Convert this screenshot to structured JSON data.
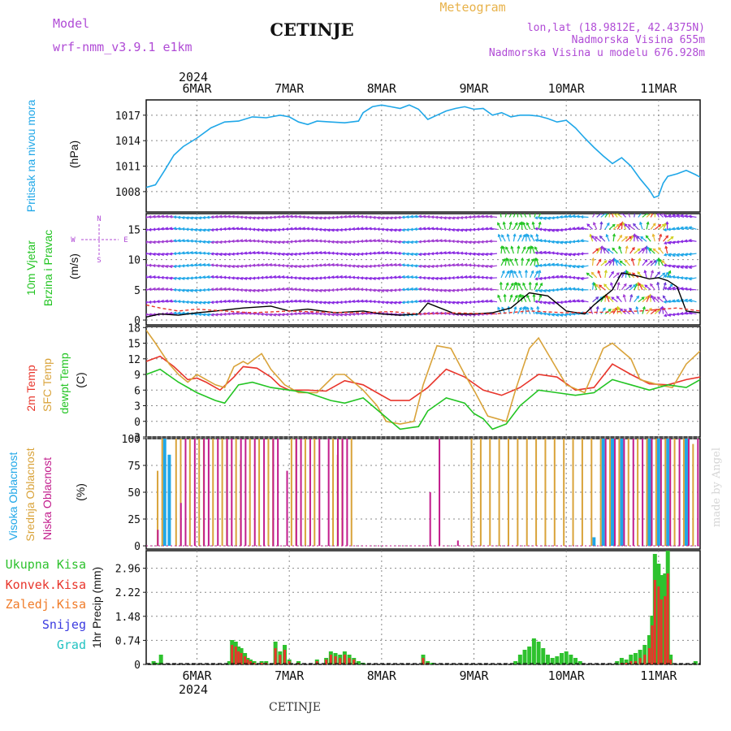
{
  "header": {
    "model_label": "Model",
    "model_name": "wrf-nmm_v3.9.1  e1km",
    "station": "CETINJE",
    "meteogram_label": "Meteogram",
    "lonlat": "lon,lat (18.9812E, 42.4375N)",
    "altitude": "Nadmorska Visina 655m",
    "model_altitude": "Nadmorska Visina u modelu 676.928m"
  },
  "footer": {
    "station": "CETINJE",
    "credit": "made by Angel"
  },
  "colors": {
    "pressure": "#1fa7e8",
    "wind_black": "#000000",
    "wind_red": "#e8352b",
    "temp2m": "#e8352b",
    "sfc": "#d9a33a",
    "dewpt": "#22c422",
    "high_cloud": "#1fa7e8",
    "mid_cloud": "#d9a33a",
    "low_cloud": "#c21c8c",
    "total_precip": "#2ec22e",
    "conv_precip": "#e8352b",
    "frz_precip": "#f07c2a",
    "snow": "#3a3ae0",
    "hail": "#22c2c2",
    "purple_label": "#b04bd6"
  },
  "time_axis": {
    "top_year": "2024",
    "bottom_year": "2024",
    "day_labels": [
      "6MAR",
      "7MAR",
      "8MAR",
      "9MAR",
      "10MAR",
      "11MAR"
    ],
    "day_positions": [
      1,
      2,
      3,
      4,
      5,
      6
    ],
    "range": [
      0.45,
      6.45
    ]
  },
  "chart_data": [
    {
      "type": "line",
      "panel": "pressure",
      "ylabel_title": "Pritisak na nivou mora",
      "ylabel_unit": "(hPa)",
      "yticks": [
        1008,
        1011,
        1014,
        1017
      ],
      "ylim": [
        1005.6,
        1018.8
      ],
      "grid": true,
      "series": [
        {
          "x": [
            0.45,
            0.55,
            0.65,
            0.75,
            0.85,
            1.0,
            1.15,
            1.3,
            1.45,
            1.6,
            1.75,
            1.9,
            2.0,
            2.1,
            2.2,
            2.3,
            2.45,
            2.6,
            2.75,
            2.8,
            2.9,
            3.0,
            3.1,
            3.2,
            3.3,
            3.4,
            3.5,
            3.6,
            3.7,
            3.8,
            3.9,
            4.0,
            4.1,
            4.2,
            4.3,
            4.4,
            4.5,
            4.6,
            4.7,
            4.8,
            4.9,
            5.0,
            5.1,
            5.2,
            5.3,
            5.4,
            5.5,
            5.6,
            5.7,
            5.8,
            5.9,
            5.95,
            6.0,
            6.05,
            6.1,
            6.2,
            6.3,
            6.4,
            6.45
          ],
          "y": [
            1008.5,
            1008.8,
            1010.5,
            1012.3,
            1013.3,
            1014.3,
            1015.5,
            1016.2,
            1016.3,
            1016.8,
            1016.7,
            1017.0,
            1016.8,
            1016.2,
            1015.9,
            1016.3,
            1016.2,
            1016.1,
            1016.3,
            1017.3,
            1018.0,
            1018.2,
            1018.0,
            1017.8,
            1018.2,
            1017.7,
            1016.5,
            1017.0,
            1017.5,
            1017.8,
            1018.0,
            1017.7,
            1017.8,
            1017.0,
            1017.3,
            1016.8,
            1017.0,
            1017.0,
            1016.9,
            1016.6,
            1016.2,
            1016.4,
            1015.5,
            1014.3,
            1013.2,
            1012.2,
            1011.3,
            1012.0,
            1011.0,
            1009.5,
            1008.2,
            1007.3,
            1007.5,
            1009.0,
            1009.8,
            1010.1,
            1010.5,
            1010.0,
            1009.7
          ]
        }
      ]
    },
    {
      "type": "line",
      "panel": "wind",
      "ylabel_title": "10m Vjetar",
      "ylabel_title2": "Brzina i Pravac",
      "ylabel_unit": "(m/s)",
      "compass": {
        "n": "N",
        "s": "S",
        "w": "W",
        "e": "E"
      },
      "yticks": [
        0,
        5,
        10,
        15
      ],
      "ylim": [
        -0.8,
        17.6
      ],
      "grid": true,
      "series": [
        {
          "name": "speed",
          "x": [
            0.45,
            0.6,
            0.8,
            1.0,
            1.2,
            1.5,
            1.8,
            2.0,
            2.2,
            2.5,
            2.8,
            3.0,
            3.2,
            3.4,
            3.5,
            3.6,
            3.8,
            4.0,
            4.2,
            4.4,
            4.6,
            4.8,
            5.0,
            5.2,
            5.3,
            5.5,
            5.6,
            5.8,
            5.9,
            6.0,
            6.1,
            6.2,
            6.3,
            6.45
          ],
          "y": [
            0.5,
            1.0,
            0.8,
            1.2,
            1.5,
            2.0,
            2.3,
            1.5,
            1.8,
            1.2,
            1.5,
            1.0,
            0.8,
            1.0,
            2.8,
            2.2,
            1.0,
            1.0,
            1.2,
            2.0,
            4.5,
            4.0,
            1.5,
            1.0,
            2.5,
            5.0,
            7.8,
            7.2,
            6.8,
            7.0,
            6.5,
            5.5,
            1.5,
            1.2
          ]
        },
        {
          "name": "gust",
          "x": [
            0.45,
            0.6,
            0.8,
            1.0,
            1.3,
            1.6,
            2.0,
            2.4,
            2.8,
            3.1,
            3.4,
            3.8,
            4.2,
            4.6,
            5.0,
            5.4,
            5.8,
            6.2,
            6.45
          ],
          "y": [
            2.5,
            2.0,
            1.5,
            1.8,
            1.5,
            1.2,
            1.5,
            1.3,
            1.2,
            1.4,
            1.0,
            1.2,
            1.0,
            1.5,
            1.2,
            1.3,
            1.5,
            2.0,
            1.5
          ]
        }
      ]
    },
    {
      "type": "line",
      "panel": "temperature",
      "ylabel_t2m": "2m Temp",
      "ylabel_sfc": "SFC Temp",
      "ylabel_dew": "dewpt Temp",
      "ylabel_unit": "(C)",
      "yticks": [
        -3,
        0,
        3,
        6,
        9,
        12,
        15,
        18
      ],
      "ylim": [
        -3,
        18.2
      ],
      "grid": true,
      "series": [
        {
          "name": "2m Temp",
          "x": [
            0.45,
            0.6,
            0.75,
            0.9,
            1.0,
            1.1,
            1.25,
            1.4,
            1.5,
            1.65,
            1.8,
            1.9,
            2.0,
            2.2,
            2.4,
            2.6,
            2.8,
            2.95,
            3.1,
            3.3,
            3.5,
            3.7,
            3.9,
            4.1,
            4.3,
            4.5,
            4.7,
            4.9,
            5.1,
            5.3,
            5.5,
            5.7,
            5.9,
            6.1,
            6.3,
            6.45
          ],
          "y": [
            11.5,
            12.5,
            10.5,
            8.0,
            8.3,
            7.5,
            6.0,
            8.5,
            10.5,
            10.2,
            8.5,
            6.8,
            6.0,
            6.0,
            5.8,
            7.8,
            7.0,
            5.5,
            4.0,
            4.0,
            6.5,
            10.0,
            8.5,
            6.0,
            5.0,
            6.5,
            9.0,
            8.5,
            6.0,
            6.5,
            11.0,
            9.0,
            7.2,
            7.0,
            8.0,
            8.5
          ]
        },
        {
          "name": "SFC Temp",
          "x": [
            0.45,
            0.55,
            0.7,
            0.8,
            0.9,
            1.0,
            1.1,
            1.2,
            1.3,
            1.4,
            1.5,
            1.55,
            1.7,
            1.8,
            1.95,
            2.1,
            2.3,
            2.5,
            2.6,
            2.8,
            2.95,
            3.05,
            3.2,
            3.35,
            3.45,
            3.6,
            3.75,
            3.9,
            4.0,
            4.15,
            4.35,
            4.45,
            4.6,
            4.7,
            4.8,
            5.0,
            5.2,
            5.4,
            5.5,
            5.7,
            5.8,
            6.0,
            6.15,
            6.3,
            6.45
          ],
          "y": [
            17.5,
            15.0,
            11.0,
            9.0,
            7.5,
            9.0,
            8.0,
            7.0,
            6.5,
            10.5,
            11.5,
            11.0,
            13.0,
            10.0,
            7.0,
            5.5,
            5.5,
            9.0,
            9.0,
            6.0,
            3.0,
            0.0,
            -0.5,
            0.0,
            7.0,
            14.5,
            14.0,
            9.0,
            6.0,
            1.0,
            0.0,
            6.0,
            14.0,
            16.0,
            13.0,
            7.0,
            5.5,
            14.0,
            15.0,
            12.0,
            8.0,
            7.0,
            6.5,
            11.0,
            13.5
          ]
        },
        {
          "name": "dewpt Temp",
          "x": [
            0.45,
            0.6,
            0.8,
            1.0,
            1.2,
            1.3,
            1.45,
            1.6,
            1.8,
            2.0,
            2.2,
            2.45,
            2.6,
            2.8,
            3.0,
            3.1,
            3.2,
            3.4,
            3.5,
            3.7,
            3.9,
            4.0,
            4.1,
            4.2,
            4.35,
            4.5,
            4.7,
            4.9,
            5.1,
            5.3,
            5.5,
            5.7,
            5.9,
            6.1,
            6.3,
            6.45
          ],
          "y": [
            9.0,
            10.0,
            7.5,
            5.5,
            4.0,
            3.5,
            7.0,
            7.5,
            6.5,
            6.0,
            5.5,
            4.0,
            3.5,
            4.5,
            1.5,
            0.0,
            -1.5,
            -1.0,
            2.0,
            4.5,
            3.5,
            1.5,
            0.5,
            -1.5,
            -0.5,
            3.0,
            6.0,
            5.5,
            5.0,
            5.5,
            8.0,
            7.0,
            6.0,
            7.0,
            6.5,
            8.0
          ]
        }
      ]
    },
    {
      "type": "bar",
      "panel": "clouds",
      "ylabel_high": "Visoka Oblacnost",
      "ylabel_mid": "Srednja Oblacnost",
      "ylabel_low": "Niska Oblacnost",
      "ylabel_unit": "(%)",
      "yticks": [
        0,
        25,
        50,
        75,
        100
      ],
      "ylim": [
        -3,
        100
      ],
      "grid": true,
      "x": [
        0.55,
        0.6,
        0.65,
        0.7,
        0.8,
        0.85,
        0.95,
        1.05,
        1.1,
        1.2,
        1.3,
        1.35,
        1.45,
        1.5,
        1.6,
        1.7,
        1.8,
        1.85,
        1.95,
        2.05,
        2.1,
        2.2,
        2.3,
        2.4,
        2.5,
        2.55,
        2.6,
        2.7,
        2.8,
        2.85,
        3.0,
        3.2,
        3.4,
        3.5,
        3.6,
        3.8,
        4.0,
        4.1,
        4.2,
        4.3,
        4.4,
        4.5,
        4.6,
        4.7,
        4.8,
        4.9,
        5.0,
        5.1,
        5.2,
        5.3,
        5.4,
        5.5,
        5.6,
        5.7,
        5.8,
        5.9,
        6.0,
        6.1,
        6.2,
        6.3,
        6.4
      ],
      "series": [
        {
          "name": "Visoka Oblacnost",
          "values": [
            0,
            0,
            100,
            85,
            0,
            0,
            0,
            0,
            0,
            0,
            0,
            0,
            0,
            0,
            0,
            0,
            0,
            0,
            0,
            0,
            0,
            0,
            0,
            0,
            0,
            0,
            0,
            0,
            0,
            0,
            0,
            0,
            0,
            0,
            0,
            0,
            0,
            0,
            0,
            0,
            0,
            0,
            0,
            0,
            0,
            0,
            0,
            0,
            0,
            8,
            100,
            100,
            100,
            0,
            0,
            100,
            100,
            100,
            0,
            100,
            0
          ]
        },
        {
          "name": "Srednja Oblacnost",
          "values": [
            0,
            70,
            100,
            0,
            100,
            100,
            100,
            100,
            100,
            100,
            100,
            100,
            100,
            80,
            100,
            100,
            100,
            100,
            0,
            100,
            100,
            100,
            100,
            0,
            100,
            85,
            100,
            100,
            0,
            0,
            0,
            0,
            0,
            0,
            0,
            0,
            100,
            100,
            100,
            100,
            100,
            100,
            100,
            100,
            100,
            100,
            100,
            100,
            100,
            100,
            100,
            100,
            100,
            100,
            100,
            100,
            100,
            100,
            100,
            100,
            95
          ]
        },
        {
          "name": "Niska Oblacnost",
          "values": [
            15,
            0,
            0,
            0,
            40,
            100,
            100,
            100,
            100,
            100,
            100,
            100,
            100,
            100,
            100,
            100,
            100,
            100,
            70,
            100,
            100,
            100,
            100,
            100,
            100,
            100,
            100,
            0,
            0,
            0,
            0,
            0,
            0,
            50,
            100,
            5,
            0,
            0,
            0,
            0,
            0,
            0,
            0,
            0,
            0,
            0,
            0,
            0,
            0,
            0,
            100,
            100,
            100,
            100,
            100,
            100,
            100,
            100,
            100,
            100,
            100
          ]
        }
      ]
    },
    {
      "type": "bar",
      "panel": "precipitation",
      "ylabel_unit": "1hr Precip (mm)",
      "legend": [
        "Ukupna Kisa",
        "Konvek.Kisa",
        "Zaledj.Kisa",
        "Snijeg",
        "Grad"
      ],
      "yticks": [
        0,
        0.74,
        1.48,
        2.22,
        2.96
      ],
      "ylim": [
        0,
        3.5
      ],
      "grid": true,
      "x": [
        0.53,
        0.57,
        0.61,
        1.35,
        1.38,
        1.42,
        1.45,
        1.48,
        1.52,
        1.55,
        1.58,
        1.62,
        1.7,
        1.75,
        1.85,
        1.9,
        1.95,
        2.0,
        2.1,
        2.3,
        2.4,
        2.45,
        2.5,
        2.55,
        2.6,
        2.65,
        2.7,
        2.75,
        2.8,
        3.45,
        3.5,
        3.55,
        4.45,
        4.5,
        4.55,
        4.6,
        4.65,
        4.7,
        4.75,
        4.8,
        4.85,
        4.9,
        4.95,
        5.0,
        5.05,
        5.1,
        5.15,
        5.55,
        5.6,
        5.65,
        5.7,
        5.75,
        5.8,
        5.85,
        5.9,
        5.93,
        5.96,
        6.0,
        6.03,
        6.07,
        6.1,
        6.13,
        6.4
      ],
      "series": [
        {
          "name": "Ukupna Kisa",
          "values": [
            0.1,
            0.05,
            0.3,
            0.1,
            0.75,
            0.7,
            0.55,
            0.5,
            0.35,
            0.2,
            0.15,
            0.1,
            0.1,
            0.1,
            0.7,
            0.4,
            0.6,
            0.15,
            0.1,
            0.15,
            0.2,
            0.4,
            0.35,
            0.3,
            0.4,
            0.3,
            0.2,
            0.1,
            0.05,
            0.3,
            0.1,
            0.05,
            0.1,
            0.3,
            0.45,
            0.55,
            0.8,
            0.7,
            0.5,
            0.3,
            0.2,
            0.25,
            0.35,
            0.4,
            0.3,
            0.2,
            0.1,
            0.1,
            0.2,
            0.15,
            0.3,
            0.35,
            0.45,
            0.6,
            0.9,
            1.5,
            3.4,
            3.1,
            2.75,
            2.8,
            3.55,
            0.3,
            0.1
          ]
        },
        {
          "name": "Konvek.Kisa",
          "values": [
            0,
            0,
            0,
            0,
            0.6,
            0.55,
            0.4,
            0.35,
            0.25,
            0.15,
            0.1,
            0.05,
            0.05,
            0.05,
            0.5,
            0.3,
            0.45,
            0.1,
            0.05,
            0.1,
            0.15,
            0.3,
            0.25,
            0.2,
            0.3,
            0.2,
            0.15,
            0,
            0,
            0.2,
            0.05,
            0,
            0,
            0,
            0,
            0,
            0,
            0,
            0,
            0,
            0,
            0,
            0,
            0,
            0,
            0,
            0,
            0,
            0.05,
            0.05,
            0.1,
            0.1,
            0.2,
            0.3,
            0.5,
            1.2,
            2.6,
            2.4,
            2.0,
            2.1,
            2.8,
            0.15,
            0
          ]
        }
      ]
    }
  ]
}
